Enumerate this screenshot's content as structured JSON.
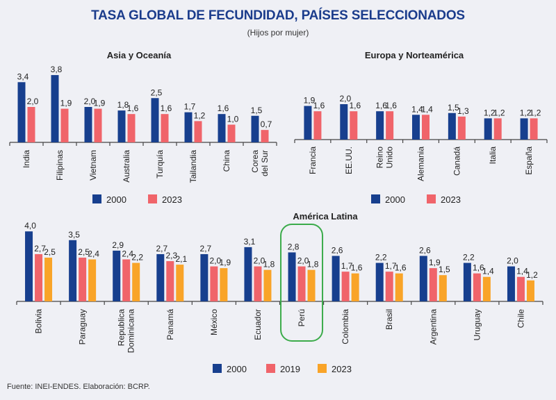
{
  "header": {
    "title": "TASA GLOBAL DE FECUNDIDAD, PAÍSES SELECCIONADOS",
    "subtitle": "(Hijos por mujer)"
  },
  "footer": "Fuente: INEI-ENDES. Elaboración: BCRP.",
  "colors": {
    "2000": "#173f8e",
    "2019": "#f0646a",
    "2023_two": "#f0646a",
    "2023_three": "#f9a428",
    "highlight": "#3bab4a",
    "axis": "#444444"
  },
  "chart_data": [
    {
      "type": "bar",
      "title": "Asia y Oceanía",
      "categories": [
        "India",
        "Filipinas",
        "Vietnam",
        "Australia",
        "Turquía",
        "Tailandia",
        "China",
        "Corea del Sur"
      ],
      "series": [
        {
          "name": "2000",
          "values": [
            3.4,
            3.8,
            2.0,
            1.8,
            2.5,
            1.7,
            1.6,
            1.5
          ],
          "labels": [
            "3,4",
            "3,8",
            "2,0",
            "1,8",
            "2,5",
            "1,7",
            "1,6",
            "1,5"
          ]
        },
        {
          "name": "2023",
          "values": [
            2.0,
            1.9,
            1.9,
            1.6,
            1.6,
            1.2,
            1.0,
            0.7
          ],
          "labels": [
            "2,0",
            "1,9",
            "1,9",
            "1,6",
            "1,6",
            "1,2",
            "1,0",
            "0,7"
          ]
        }
      ],
      "xlabel": "",
      "ylabel": "",
      "ylim": [
        0,
        4.2
      ],
      "grid": false,
      "legend": "bottom"
    },
    {
      "type": "bar",
      "title": "Europa y Norteamérica",
      "categories": [
        "Francia",
        "EE.UU.",
        "Reino Unido",
        "Alemania",
        "Canadá",
        "Italia",
        "España"
      ],
      "series": [
        {
          "name": "2000",
          "values": [
            1.9,
            2.0,
            1.6,
            1.4,
            1.5,
            1.2,
            1.2
          ],
          "labels": [
            "1,9",
            "2,0",
            "1,6",
            "1,4",
            "1,5",
            "1,2",
            "1,2"
          ]
        },
        {
          "name": "2023",
          "values": [
            1.6,
            1.6,
            1.6,
            1.4,
            1.3,
            1.2,
            1.2
          ],
          "labels": [
            "1,6",
            "1,6",
            "1,6",
            "1,4",
            "1,3",
            "1,2",
            "1,2"
          ]
        }
      ],
      "xlabel": "",
      "ylabel": "",
      "ylim": [
        0,
        4.2
      ],
      "grid": false,
      "legend": "bottom"
    },
    {
      "type": "bar",
      "title": "América Latina",
      "categories": [
        "Bolivia",
        "Paraguay",
        "Republica Dominicana",
        "Panamá",
        "México",
        "Ecuador",
        "Perú",
        "Colombia",
        "Brasil",
        "Argentina",
        "Uruguay",
        "Chile"
      ],
      "highlight": "Perú",
      "series": [
        {
          "name": "2000",
          "values": [
            4.0,
            3.5,
            2.9,
            2.7,
            2.7,
            3.1,
            2.8,
            2.6,
            2.2,
            2.6,
            2.2,
            2.0
          ],
          "labels": [
            "4,0",
            "3,5",
            "2,9",
            "2,7",
            "2,7",
            "3,1",
            "2,8",
            "2,6",
            "2,2",
            "2,6",
            "2,2",
            "2,0"
          ]
        },
        {
          "name": "2019",
          "values": [
            2.7,
            2.5,
            2.4,
            2.3,
            2.0,
            2.0,
            2.0,
            1.7,
            1.7,
            1.9,
            1.6,
            1.4
          ],
          "labels": [
            "2,7",
            "2,5",
            "2,4",
            "2,3",
            "2,0",
            "2,0",
            "2,0",
            "1,7",
            "1,7",
            "1,9",
            "1,6",
            "1,4"
          ]
        },
        {
          "name": "2023",
          "values": [
            2.5,
            2.4,
            2.2,
            2.1,
            1.9,
            1.8,
            1.8,
            1.6,
            1.6,
            1.5,
            1.4,
            1.2
          ],
          "labels": [
            "2,5",
            "2,4",
            "2,2",
            "2,1",
            "1,9",
            "1,8",
            "1,8",
            "1,6",
            "1,6",
            "1,5",
            "1,4",
            "1,2"
          ]
        }
      ],
      "xlabel": "",
      "ylabel": "",
      "ylim": [
        0,
        4.2
      ],
      "grid": false,
      "legend": "bottom"
    }
  ]
}
